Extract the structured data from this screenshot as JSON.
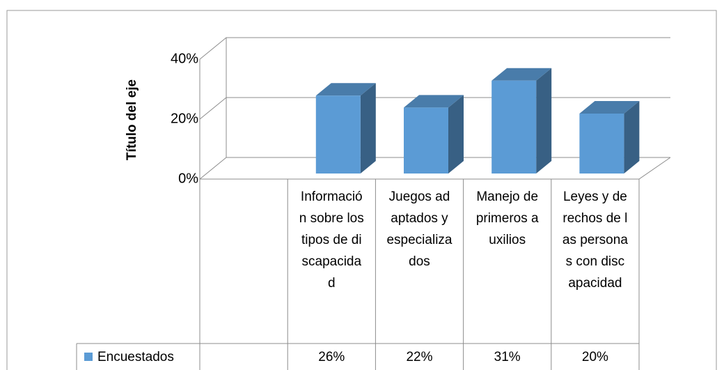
{
  "chart_data": {
    "type": "bar3d",
    "y_axis_title": "Título del eje",
    "categories": [
      null,
      "Información sobre los tipos de discapacidad",
      "Juegos adaptados y especializados",
      "Manejo de primeros auxilios",
      "Leyes y derechos de las personas con discapacidad"
    ],
    "series": [
      {
        "name": "Encuestados",
        "color": "#5b9bd5",
        "values": [
          null,
          26,
          22,
          31,
          20
        ],
        "value_labels": [
          null,
          "26%",
          "22%",
          "31%",
          "20%"
        ]
      }
    ],
    "ylim": [
      0,
      40
    ],
    "yticks": [
      {
        "value": 0,
        "label": "0%"
      },
      {
        "value": 20,
        "label": "20%"
      },
      {
        "value": 40,
        "label": "40%"
      }
    ],
    "grid": true,
    "data_table": true
  }
}
